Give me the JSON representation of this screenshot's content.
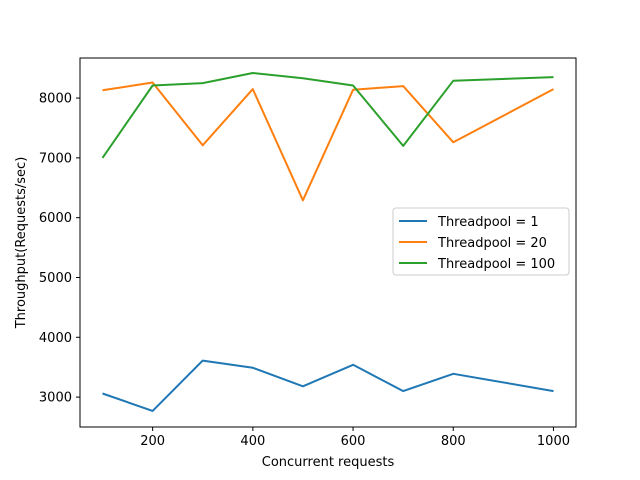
{
  "chart_data": {
    "type": "line",
    "title": "",
    "xlabel": "Concurrent requests",
    "ylabel": "Throughput(Requests/sec)",
    "x": [
      100,
      200,
      300,
      400,
      500,
      600,
      700,
      800,
      900,
      1000
    ],
    "xlim": [
      55,
      1045
    ],
    "ylim": [
      2500,
      8670
    ],
    "xticks": [
      200,
      400,
      600,
      800,
      1000
    ],
    "yticks": [
      3000,
      4000,
      5000,
      6000,
      7000,
      8000
    ],
    "grid": false,
    "legend_position": "center-right",
    "series": [
      {
        "name": "Threadpool = 1",
        "color": "#1f77b4",
        "values": [
          3060,
          2770,
          3610,
          3490,
          3180,
          3540,
          3100,
          3390,
          null,
          3100
        ],
        "points": [
          [
            100,
            3060
          ],
          [
            200,
            2770
          ],
          [
            300,
            3610
          ],
          [
            400,
            3490
          ],
          [
            500,
            3180
          ],
          [
            600,
            3540
          ],
          [
            700,
            3100
          ],
          [
            800,
            3390
          ],
          [
            1000,
            3100
          ]
        ]
      },
      {
        "name": "Threadpool = 20",
        "color": "#ff7f0e",
        "points": [
          [
            100,
            8130
          ],
          [
            200,
            8260
          ],
          [
            300,
            7210
          ],
          [
            400,
            8150
          ],
          [
            500,
            6290
          ],
          [
            600,
            8140
          ],
          [
            700,
            8200
          ],
          [
            800,
            7260
          ],
          [
            1000,
            8150
          ]
        ]
      },
      {
        "name": "Threadpool = 100",
        "color": "#2ca02c",
        "points": [
          [
            100,
            7000
          ],
          [
            200,
            8210
          ],
          [
            300,
            8250
          ],
          [
            400,
            8420
          ],
          [
            500,
            8330
          ],
          [
            600,
            8210
          ],
          [
            700,
            7200
          ],
          [
            800,
            8290
          ],
          [
            1000,
            8350
          ]
        ]
      }
    ]
  }
}
